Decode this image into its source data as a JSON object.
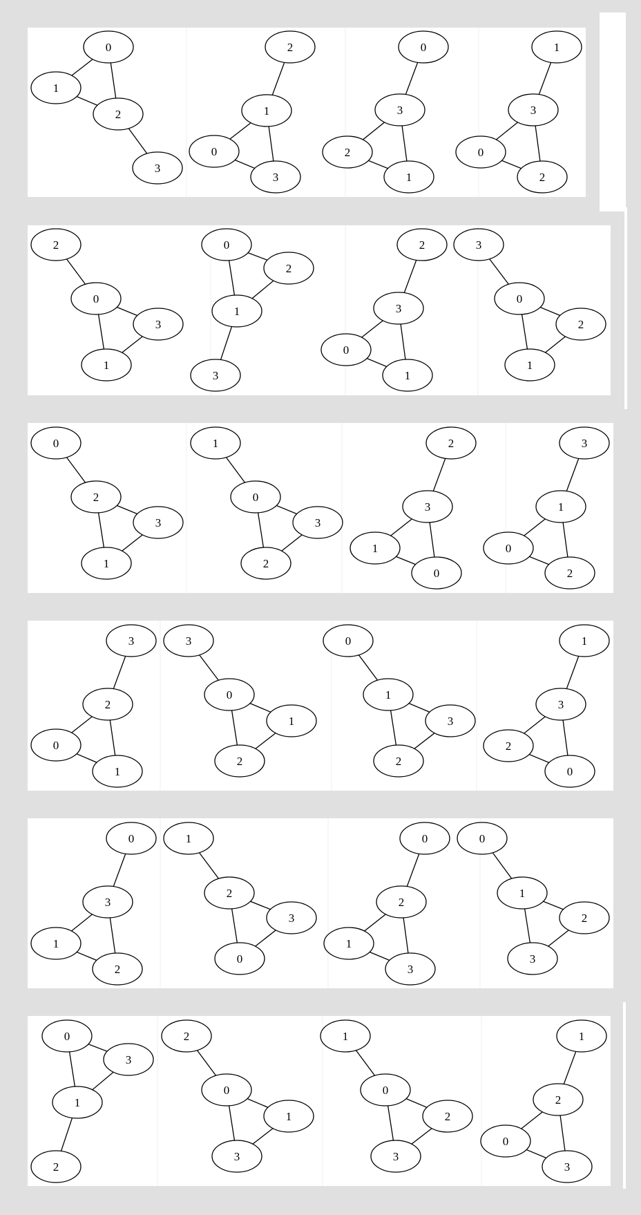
{
  "rows": [
    {
      "graphs": [
        {
          "nodes": [
            {
              "id": "g00-n0",
              "label": "0"
            },
            {
              "id": "g00-n1",
              "label": "1"
            },
            {
              "id": "g00-n2",
              "label": "2"
            },
            {
              "id": "g00-n3",
              "label": "3"
            }
          ],
          "edges": [
            [
              "g00-n0",
              "g00-n1"
            ],
            [
              "g00-n0",
              "g00-n2"
            ],
            [
              "g00-n1",
              "g00-n2"
            ],
            [
              "g00-n2",
              "g00-n3"
            ]
          ]
        },
        {
          "nodes": [
            {
              "id": "g01-n2",
              "label": "2"
            },
            {
              "id": "g01-n1",
              "label": "1"
            },
            {
              "id": "g01-n0",
              "label": "0"
            },
            {
              "id": "g01-n3",
              "label": "3"
            }
          ],
          "edges": [
            [
              "g01-n2",
              "g01-n1"
            ],
            [
              "g01-n1",
              "g01-n0"
            ],
            [
              "g01-n1",
              "g01-n3"
            ],
            [
              "g01-n0",
              "g01-n3"
            ]
          ]
        },
        {
          "nodes": [
            {
              "id": "g02-n0",
              "label": "0"
            },
            {
              "id": "g02-n3",
              "label": "3"
            },
            {
              "id": "g02-n2",
              "label": "2"
            },
            {
              "id": "g02-n1",
              "label": "1"
            }
          ],
          "edges": [
            [
              "g02-n0",
              "g02-n3"
            ],
            [
              "g02-n3",
              "g02-n2"
            ],
            [
              "g02-n3",
              "g02-n1"
            ],
            [
              "g02-n2",
              "g02-n1"
            ]
          ]
        },
        {
          "nodes": [
            {
              "id": "g03-n1",
              "label": "1"
            },
            {
              "id": "g03-n3",
              "label": "3"
            },
            {
              "id": "g03-n0",
              "label": "0"
            },
            {
              "id": "g03-n2",
              "label": "2"
            }
          ],
          "edges": [
            [
              "g03-n1",
              "g03-n3"
            ],
            [
              "g03-n3",
              "g03-n0"
            ],
            [
              "g03-n3",
              "g03-n2"
            ],
            [
              "g03-n0",
              "g03-n2"
            ]
          ]
        }
      ]
    },
    {
      "graphs": [
        {
          "nodes": [
            {
              "id": "g10-n2",
              "label": "2"
            },
            {
              "id": "g10-n0",
              "label": "0"
            },
            {
              "id": "g10-n3",
              "label": "3"
            },
            {
              "id": "g10-n1",
              "label": "1"
            }
          ],
          "edges": [
            [
              "g10-n2",
              "g10-n0"
            ],
            [
              "g10-n0",
              "g10-n3"
            ],
            [
              "g10-n0",
              "g10-n1"
            ],
            [
              "g10-n3",
              "g10-n1"
            ]
          ]
        },
        {
          "nodes": [
            {
              "id": "g11-n0",
              "label": "0"
            },
            {
              "id": "g11-n2",
              "label": "2"
            },
            {
              "id": "g11-n1",
              "label": "1"
            },
            {
              "id": "g11-n3",
              "label": "3"
            }
          ],
          "edges": [
            [
              "g11-n0",
              "g11-n2"
            ],
            [
              "g11-n0",
              "g11-n1"
            ],
            [
              "g11-n2",
              "g11-n1"
            ],
            [
              "g11-n1",
              "g11-n3"
            ]
          ]
        },
        {
          "nodes": [
            {
              "id": "g12-n2",
              "label": "2"
            },
            {
              "id": "g12-n3",
              "label": "3"
            },
            {
              "id": "g12-n0",
              "label": "0"
            },
            {
              "id": "g12-n1",
              "label": "1"
            }
          ],
          "edges": [
            [
              "g12-n2",
              "g12-n3"
            ],
            [
              "g12-n3",
              "g12-n0"
            ],
            [
              "g12-n3",
              "g12-n1"
            ],
            [
              "g12-n0",
              "g12-n1"
            ]
          ]
        },
        {
          "nodes": [
            {
              "id": "g13-n3",
              "label": "3"
            },
            {
              "id": "g13-n0",
              "label": "0"
            },
            {
              "id": "g13-n2",
              "label": "2"
            },
            {
              "id": "g13-n1",
              "label": "1"
            }
          ],
          "edges": [
            [
              "g13-n3",
              "g13-n0"
            ],
            [
              "g13-n0",
              "g13-n2"
            ],
            [
              "g13-n0",
              "g13-n1"
            ],
            [
              "g13-n2",
              "g13-n1"
            ]
          ]
        }
      ]
    },
    {
      "graphs": [
        {
          "nodes": [
            {
              "id": "g20-n0",
              "label": "0"
            },
            {
              "id": "g20-n2",
              "label": "2"
            },
            {
              "id": "g20-n3",
              "label": "3"
            },
            {
              "id": "g20-n1",
              "label": "1"
            }
          ],
          "edges": [
            [
              "g20-n0",
              "g20-n2"
            ],
            [
              "g20-n2",
              "g20-n3"
            ],
            [
              "g20-n2",
              "g20-n1"
            ],
            [
              "g20-n3",
              "g20-n1"
            ]
          ]
        },
        {
          "nodes": [
            {
              "id": "g21-n1",
              "label": "1"
            },
            {
              "id": "g21-n0",
              "label": "0"
            },
            {
              "id": "g21-n3",
              "label": "3"
            },
            {
              "id": "g21-n2",
              "label": "2"
            }
          ],
          "edges": [
            [
              "g21-n1",
              "g21-n0"
            ],
            [
              "g21-n0",
              "g21-n3"
            ],
            [
              "g21-n0",
              "g21-n2"
            ],
            [
              "g21-n3",
              "g21-n2"
            ]
          ]
        },
        {
          "nodes": [
            {
              "id": "g22-n2",
              "label": "2"
            },
            {
              "id": "g22-n3",
              "label": "3"
            },
            {
              "id": "g22-n1",
              "label": "1"
            },
            {
              "id": "g22-n0",
              "label": "0"
            }
          ],
          "edges": [
            [
              "g22-n2",
              "g22-n3"
            ],
            [
              "g22-n3",
              "g22-n1"
            ],
            [
              "g22-n3",
              "g22-n0"
            ],
            [
              "g22-n1",
              "g22-n0"
            ]
          ]
        },
        {
          "nodes": [
            {
              "id": "g23-n3",
              "label": "3"
            },
            {
              "id": "g23-n1",
              "label": "1"
            },
            {
              "id": "g23-n0",
              "label": "0"
            },
            {
              "id": "g23-n2",
              "label": "2"
            }
          ],
          "edges": [
            [
              "g23-n3",
              "g23-n1"
            ],
            [
              "g23-n1",
              "g23-n0"
            ],
            [
              "g23-n1",
              "g23-n2"
            ],
            [
              "g23-n0",
              "g23-n2"
            ]
          ]
        }
      ]
    },
    {
      "graphs": [
        {
          "nodes": [
            {
              "id": "g30-n3",
              "label": "3"
            },
            {
              "id": "g30-n2",
              "label": "2"
            },
            {
              "id": "g30-n0",
              "label": "0"
            },
            {
              "id": "g30-n1",
              "label": "1"
            }
          ],
          "edges": [
            [
              "g30-n3",
              "g30-n2"
            ],
            [
              "g30-n2",
              "g30-n0"
            ],
            [
              "g30-n2",
              "g30-n1"
            ],
            [
              "g30-n0",
              "g30-n1"
            ]
          ]
        },
        {
          "nodes": [
            {
              "id": "g31-n3",
              "label": "3"
            },
            {
              "id": "g31-n0",
              "label": "0"
            },
            {
              "id": "g31-n1",
              "label": "1"
            },
            {
              "id": "g31-n2",
              "label": "2"
            }
          ],
          "edges": [
            [
              "g31-n3",
              "g31-n0"
            ],
            [
              "g31-n0",
              "g31-n1"
            ],
            [
              "g31-n0",
              "g31-n2"
            ],
            [
              "g31-n1",
              "g31-n2"
            ]
          ]
        },
        {
          "nodes": [
            {
              "id": "g32-n0",
              "label": "0"
            },
            {
              "id": "g32-n1",
              "label": "1"
            },
            {
              "id": "g32-n3",
              "label": "3"
            },
            {
              "id": "g32-n2",
              "label": "2"
            }
          ],
          "edges": [
            [
              "g32-n0",
              "g32-n1"
            ],
            [
              "g32-n1",
              "g32-n3"
            ],
            [
              "g32-n1",
              "g32-n2"
            ],
            [
              "g32-n3",
              "g32-n2"
            ]
          ]
        },
        {
          "nodes": [
            {
              "id": "g33-n1",
              "label": "1"
            },
            {
              "id": "g33-n3",
              "label": "3"
            },
            {
              "id": "g33-n2",
              "label": "2"
            },
            {
              "id": "g33-n0",
              "label": "0"
            }
          ],
          "edges": [
            [
              "g33-n1",
              "g33-n3"
            ],
            [
              "g33-n3",
              "g33-n2"
            ],
            [
              "g33-n3",
              "g33-n0"
            ],
            [
              "g33-n2",
              "g33-n0"
            ]
          ]
        }
      ]
    },
    {
      "graphs": [
        {
          "nodes": [
            {
              "id": "g40-n0",
              "label": "0"
            },
            {
              "id": "g40-n3",
              "label": "3"
            },
            {
              "id": "g40-n1",
              "label": "1"
            },
            {
              "id": "g40-n2",
              "label": "2"
            }
          ],
          "edges": [
            [
              "g40-n0",
              "g40-n3"
            ],
            [
              "g40-n3",
              "g40-n1"
            ],
            [
              "g40-n3",
              "g40-n2"
            ],
            [
              "g40-n1",
              "g40-n2"
            ]
          ]
        },
        {
          "nodes": [
            {
              "id": "g41-n1",
              "label": "1"
            },
            {
              "id": "g41-n2",
              "label": "2"
            },
            {
              "id": "g41-n3",
              "label": "3"
            },
            {
              "id": "g41-n0",
              "label": "0"
            }
          ],
          "edges": [
            [
              "g41-n1",
              "g41-n2"
            ],
            [
              "g41-n2",
              "g41-n3"
            ],
            [
              "g41-n2",
              "g41-n0"
            ],
            [
              "g41-n3",
              "g41-n0"
            ]
          ]
        },
        {
          "nodes": [
            {
              "id": "g42-n0",
              "label": "0"
            },
            {
              "id": "g42-n2",
              "label": "2"
            },
            {
              "id": "g42-n1",
              "label": "1"
            },
            {
              "id": "g42-n3",
              "label": "3"
            }
          ],
          "edges": [
            [
              "g42-n0",
              "g42-n2"
            ],
            [
              "g42-n2",
              "g42-n1"
            ],
            [
              "g42-n2",
              "g42-n3"
            ],
            [
              "g42-n1",
              "g42-n3"
            ]
          ]
        },
        {
          "nodes": [
            {
              "id": "g43-n0",
              "label": "0"
            },
            {
              "id": "g43-n1",
              "label": "1"
            },
            {
              "id": "g43-n2",
              "label": "2"
            },
            {
              "id": "g43-n3",
              "label": "3"
            }
          ],
          "edges": [
            [
              "g43-n0",
              "g43-n1"
            ],
            [
              "g43-n1",
              "g43-n2"
            ],
            [
              "g43-n1",
              "g43-n3"
            ],
            [
              "g43-n2",
              "g43-n3"
            ]
          ]
        }
      ]
    },
    {
      "graphs": [
        {
          "nodes": [
            {
              "id": "g50-n0",
              "label": "0"
            },
            {
              "id": "g50-n3",
              "label": "3"
            },
            {
              "id": "g50-n1",
              "label": "1"
            },
            {
              "id": "g50-n2",
              "label": "2"
            }
          ],
          "edges": [
            [
              "g50-n0",
              "g50-n3"
            ],
            [
              "g50-n0",
              "g50-n1"
            ],
            [
              "g50-n3",
              "g50-n1"
            ],
            [
              "g50-n1",
              "g50-n2"
            ]
          ]
        },
        {
          "nodes": [
            {
              "id": "g51-n2",
              "label": "2"
            },
            {
              "id": "g51-n0",
              "label": "0"
            },
            {
              "id": "g51-n1",
              "label": "1"
            },
            {
              "id": "g51-n3",
              "label": "3"
            }
          ],
          "edges": [
            [
              "g51-n2",
              "g51-n0"
            ],
            [
              "g51-n0",
              "g51-n1"
            ],
            [
              "g51-n0",
              "g51-n3"
            ],
            [
              "g51-n1",
              "g51-n3"
            ]
          ]
        },
        {
          "nodes": [
            {
              "id": "g52-n1",
              "label": "1"
            },
            {
              "id": "g52-n0",
              "label": "0"
            },
            {
              "id": "g52-n2",
              "label": "2"
            },
            {
              "id": "g52-n3",
              "label": "3"
            }
          ],
          "edges": [
            [
              "g52-n1",
              "g52-n0"
            ],
            [
              "g52-n0",
              "g52-n2"
            ],
            [
              "g52-n0",
              "g52-n3"
            ],
            [
              "g52-n2",
              "g52-n3"
            ]
          ]
        },
        {
          "nodes": [
            {
              "id": "g53-n1",
              "label": "1"
            },
            {
              "id": "g53-n2",
              "label": "2"
            },
            {
              "id": "g53-n0",
              "label": "0"
            },
            {
              "id": "g53-n3",
              "label": "3"
            }
          ],
          "edges": [
            [
              "g53-n1",
              "g53-n2"
            ],
            [
              "g53-n2",
              "g53-n0"
            ],
            [
              "g53-n2",
              "g53-n3"
            ],
            [
              "g53-n0",
              "g53-n3"
            ]
          ]
        }
      ]
    }
  ]
}
